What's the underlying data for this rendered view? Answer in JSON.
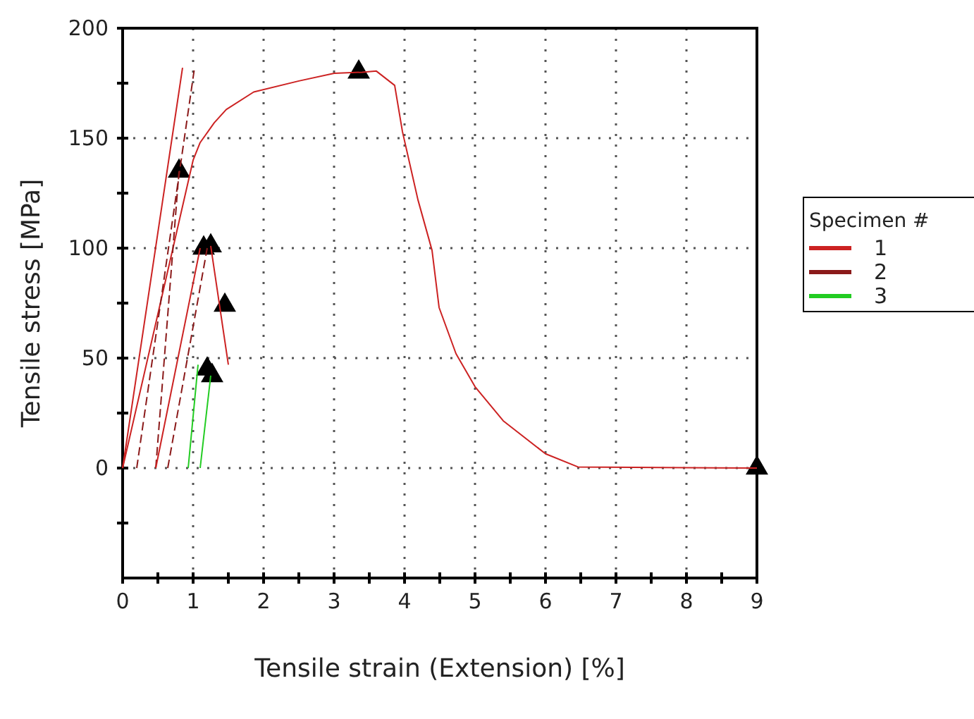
{
  "chart_data": {
    "type": "line",
    "xlabel": "Tensile strain (Extension) [%]",
    "ylabel": "Tensile stress [MPa]",
    "legend_title": "Specimen #",
    "legend": "right",
    "grid": true,
    "xlim": [
      0,
      9
    ],
    "ylim": [
      -50,
      200
    ],
    "xticks": [
      0,
      {
        "value": 0.5,
        "label": null
      },
      1,
      {
        "value": 1.5,
        "label": null
      },
      2,
      {
        "value": 2.5,
        "label": null
      },
      3,
      {
        "value": 3.5,
        "label": null
      },
      4,
      {
        "value": 4.5,
        "label": null
      },
      5,
      {
        "value": 5.5,
        "label": null
      },
      6,
      {
        "value": 6.5,
        "label": null
      },
      7,
      {
        "value": 7.5,
        "label": null
      },
      8,
      {
        "value": 8.5,
        "label": null
      },
      9
    ],
    "yticks": [
      {
        "value": -25,
        "label": null
      },
      0,
      {
        "value": 25,
        "label": null
      },
      50,
      {
        "value": 75,
        "label": null
      },
      100,
      {
        "value": 125,
        "label": null
      },
      150,
      {
        "value": 175,
        "label": null
      },
      200
    ],
    "series": [
      {
        "name": "1",
        "color": "#cc2222",
        "line_style": "solid",
        "x": [
          0,
          1.0,
          1.1,
          1.3,
          1.47,
          1.86,
          2.5,
          3.0,
          3.4,
          3.6,
          3.86,
          3.97,
          4.19,
          4.39,
          4.49,
          4.73,
          5.0,
          5.4,
          6.0,
          6.46,
          9
        ],
        "values": [
          0,
          140,
          148,
          157,
          163,
          171,
          176,
          179.5,
          180,
          180.5,
          174,
          153,
          122,
          99,
          73,
          52,
          37,
          21.5,
          6.5,
          0.5,
          0
        ]
      },
      {
        "name": "2",
        "color": "#8b1a1a",
        "line_style": "dashed",
        "x": [
          0.2,
          1.02
        ],
        "values": [
          0,
          182
        ]
      },
      {
        "name": "3",
        "color": "#22cc22",
        "line_style": "solid",
        "x": [
          0.93,
          1.07
        ],
        "values": [
          0,
          47
        ]
      },
      {
        "color": "#cc2222",
        "line_style": "solid",
        "x": [
          0,
          0.85
        ],
        "values": [
          0,
          182
        ]
      },
      {
        "color": "#8b1a1a",
        "line_style": "dashed",
        "x": [
          0.47,
          0.8
        ],
        "values": [
          0,
          135
        ]
      },
      {
        "color": "#cc2222",
        "line_style": "solid",
        "x": [
          0.47,
          1.1
        ],
        "values": [
          0,
          100
        ]
      },
      {
        "color": "#8b1a1a",
        "line_style": "dashed",
        "x": [
          0.64,
          1.2
        ],
        "values": [
          0,
          100
        ]
      },
      {
        "color": "#cc2222",
        "line_style": "solid",
        "x": [
          1.25,
          1.5
        ],
        "values": [
          101,
          47
        ]
      },
      {
        "color": "#22cc22",
        "line_style": "solid",
        "x": [
          1.1,
          1.25
        ],
        "values": [
          0,
          42
        ]
      },
      {
        "type": "scatter",
        "marker": "triangle",
        "color": "#000000",
        "x": [
          0.8,
          1.15,
          1.25,
          1.45,
          1.2,
          1.27,
          3.35,
          9
        ],
        "values": [
          135,
          100,
          101,
          74,
          45,
          42,
          180,
          0
        ]
      }
    ]
  }
}
